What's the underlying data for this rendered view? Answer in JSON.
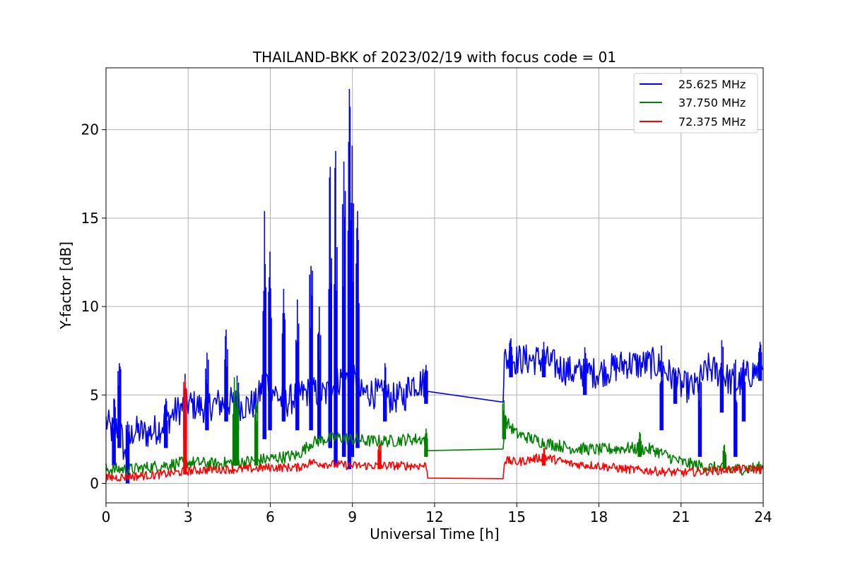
{
  "chart_data": {
    "type": "line",
    "title": "THAILAND-BKK of 2023/02/19 with focus code = 01",
    "xlabel": "Universal Time [h]",
    "ylabel": "Y-factor [dB]",
    "xlim": [
      0,
      24
    ],
    "ylim": [
      -1.1,
      23.5
    ],
    "xticks": [
      0,
      3,
      6,
      9,
      12,
      15,
      18,
      21,
      24
    ],
    "yticks": [
      0,
      5,
      10,
      15,
      20
    ],
    "grid": true,
    "legend_position": "top-right",
    "series": [
      {
        "name": "25.625 MHz",
        "color": "#0000ff",
        "points": [
          [
            0.0,
            3.5
          ],
          [
            0.2,
            3.0
          ],
          [
            0.5,
            3.2
          ],
          [
            0.7,
            1.5
          ],
          [
            1.0,
            3.0
          ],
          [
            1.5,
            2.8
          ],
          [
            2.0,
            3.2
          ],
          [
            2.5,
            4.0
          ],
          [
            3.0,
            4.5
          ],
          [
            3.5,
            4.3
          ],
          [
            4.0,
            4.5
          ],
          [
            4.5,
            4.6
          ],
          [
            5.0,
            4.4
          ],
          [
            5.5,
            4.5
          ],
          [
            5.8,
            6.0
          ],
          [
            6.0,
            5.5
          ],
          [
            6.5,
            4.5
          ],
          [
            7.0,
            5.0
          ],
          [
            7.5,
            5.2
          ],
          [
            8.0,
            5.0
          ],
          [
            8.3,
            5.5
          ],
          [
            8.6,
            6.0
          ],
          [
            9.0,
            6.0
          ],
          [
            9.3,
            5.0
          ],
          [
            9.6,
            5.2
          ],
          [
            10.0,
            5.0
          ],
          [
            10.5,
            4.8
          ],
          [
            11.0,
            5.0
          ],
          [
            11.05,
            5.7
          ],
          [
            11.7,
            5.7
          ],
          [
            11.75,
            5.2
          ],
          [
            14.5,
            5.25
          ],
          [
            14.55,
            7.0
          ],
          [
            15.0,
            7.0
          ],
          [
            15.5,
            7.0
          ],
          [
            16.0,
            7.0
          ],
          [
            16.5,
            6.6
          ],
          [
            17.0,
            6.3
          ],
          [
            17.5,
            6.2
          ],
          [
            18.0,
            6.3
          ],
          [
            18.5,
            6.5
          ],
          [
            19.0,
            6.8
          ],
          [
            19.5,
            6.7
          ],
          [
            20.0,
            6.8
          ],
          [
            20.5,
            6.3
          ],
          [
            21.0,
            5.5
          ],
          [
            21.5,
            5.4
          ],
          [
            22.0,
            6.5
          ],
          [
            22.5,
            6.2
          ],
          [
            23.0,
            5.5
          ],
          [
            23.5,
            6.2
          ],
          [
            24.0,
            6.5
          ]
        ],
        "spikes": [
          [
            0.3,
            1.0,
            4.8
          ],
          [
            0.5,
            2.0,
            6.8
          ],
          [
            0.8,
            0.0,
            3.5
          ],
          [
            2.2,
            2.0,
            4.8
          ],
          [
            2.9,
            2.5,
            6.2
          ],
          [
            3.7,
            3.0,
            7.4
          ],
          [
            4.4,
            3.5,
            8.7
          ],
          [
            4.8,
            3.0,
            6.1
          ],
          [
            5.8,
            2.5,
            15.4
          ],
          [
            6.0,
            3.0,
            13.1
          ],
          [
            6.5,
            3.5,
            11.0
          ],
          [
            7.0,
            3.0,
            10.4
          ],
          [
            7.5,
            3.0,
            12.3
          ],
          [
            7.8,
            2.5,
            10.0
          ],
          [
            8.2,
            2.0,
            17.9
          ],
          [
            8.4,
            1.0,
            18.8
          ],
          [
            8.7,
            1.5,
            18.2
          ],
          [
            8.9,
            0.8,
            22.3
          ],
          [
            9.0,
            1.5,
            19.1
          ],
          [
            9.2,
            2.0,
            15.4
          ],
          [
            10.2,
            3.5,
            6.8
          ],
          [
            11.7,
            4.5,
            6.7
          ],
          [
            14.8,
            6.0,
            8.2
          ],
          [
            16.0,
            6.0,
            8.0
          ],
          [
            17.5,
            5.0,
            7.7
          ],
          [
            20.3,
            3.0,
            7.8
          ],
          [
            20.8,
            4.5,
            6.5
          ],
          [
            21.7,
            1.5,
            6.3
          ],
          [
            22.5,
            4.0,
            8.1
          ],
          [
            23.0,
            1.5,
            7.0
          ],
          [
            23.3,
            3.5,
            7.0
          ],
          [
            23.9,
            5.8,
            8.0
          ]
        ]
      },
      {
        "name": "37.750 MHz",
        "color": "#008000",
        "points": [
          [
            0.0,
            0.8
          ],
          [
            1.0,
            0.8
          ],
          [
            2.0,
            1.0
          ],
          [
            3.0,
            1.2
          ],
          [
            4.0,
            1.1
          ],
          [
            4.7,
            1.2
          ],
          [
            5.0,
            1.2
          ],
          [
            5.5,
            1.3
          ],
          [
            6.0,
            1.4
          ],
          [
            6.5,
            1.5
          ],
          [
            7.0,
            1.6
          ],
          [
            7.5,
            2.3
          ],
          [
            8.0,
            2.5
          ],
          [
            8.5,
            2.6
          ],
          [
            9.0,
            2.5
          ],
          [
            9.5,
            2.4
          ],
          [
            10.0,
            2.4
          ],
          [
            10.5,
            2.4
          ],
          [
            11.0,
            2.5
          ],
          [
            11.7,
            2.5
          ],
          [
            11.75,
            1.85
          ],
          [
            14.5,
            1.85
          ],
          [
            14.55,
            3.6
          ],
          [
            15.0,
            2.8
          ],
          [
            16.0,
            2.3
          ],
          [
            17.0,
            2.0
          ],
          [
            18.0,
            1.9
          ],
          [
            19.0,
            2.0
          ],
          [
            20.0,
            1.9
          ],
          [
            21.0,
            1.2
          ],
          [
            22.0,
            0.9
          ],
          [
            23.0,
            0.8
          ],
          [
            24.0,
            0.9
          ]
        ],
        "spikes": [
          [
            4.7,
            1.0,
            6.0
          ],
          [
            4.8,
            1.0,
            5.8
          ],
          [
            5.5,
            1.0,
            4.6
          ],
          [
            11.7,
            1.5,
            3.1
          ],
          [
            14.55,
            2.5,
            4.7
          ],
          [
            19.5,
            1.5,
            2.9
          ],
          [
            22.6,
            0.8,
            2.2
          ]
        ]
      },
      {
        "name": "72.375 MHz",
        "color": "#ff0000",
        "points": [
          [
            0.0,
            0.3
          ],
          [
            1.0,
            0.4
          ],
          [
            2.0,
            0.5
          ],
          [
            3.0,
            0.7
          ],
          [
            4.0,
            0.8
          ],
          [
            5.0,
            0.8
          ],
          [
            6.0,
            0.9
          ],
          [
            7.0,
            0.9
          ],
          [
            7.5,
            1.2
          ],
          [
            8.0,
            1.1
          ],
          [
            9.0,
            1.0
          ],
          [
            10.0,
            1.0
          ],
          [
            11.0,
            1.0
          ],
          [
            11.7,
            1.0
          ],
          [
            11.75,
            0.3
          ],
          [
            14.5,
            0.3
          ],
          [
            14.55,
            1.3
          ],
          [
            15.0,
            1.2
          ],
          [
            16.0,
            1.5
          ],
          [
            17.0,
            1.1
          ],
          [
            18.0,
            1.0
          ],
          [
            19.0,
            0.8
          ],
          [
            20.0,
            0.7
          ],
          [
            21.0,
            0.6
          ],
          [
            22.0,
            0.7
          ],
          [
            23.0,
            0.8
          ],
          [
            24.0,
            0.8
          ]
        ],
        "spikes": [
          [
            2.9,
            0.5,
            5.9
          ],
          [
            10.0,
            0.8,
            2.2
          ],
          [
            16.0,
            1.0,
            2.0
          ]
        ]
      }
    ]
  }
}
